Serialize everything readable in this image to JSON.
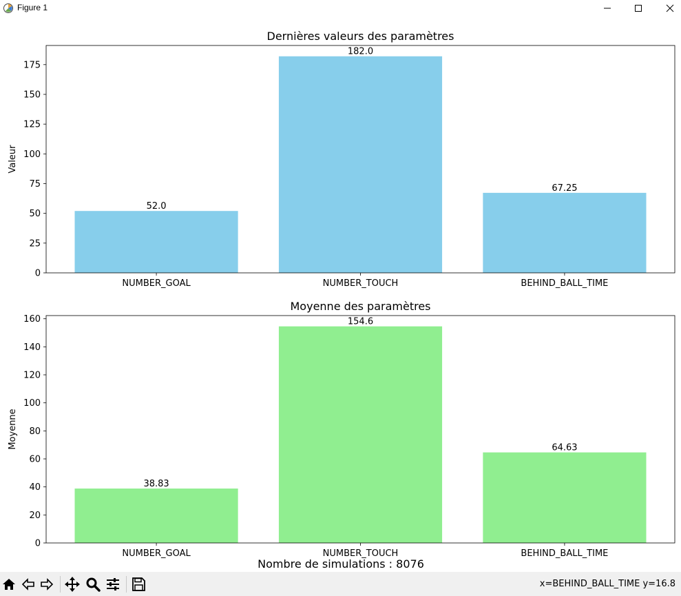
{
  "window": {
    "title": "Figure 1",
    "minimize_label": "—",
    "maximize_label": "☐",
    "close_label": "✕"
  },
  "figure": {
    "suptitle": "Nombre de simulations : 8076"
  },
  "chart_data": [
    {
      "type": "bar",
      "title": "Dernières valeurs des paramètres",
      "xlabel": "",
      "ylabel": "Valeur",
      "categories": [
        "NUMBER_GOAL",
        "NUMBER_TOUCH",
        "BEHIND_BALL_TIME"
      ],
      "values": [
        52.0,
        182.0,
        67.25
      ],
      "data_labels": [
        "52.0",
        "182.0",
        "67.25"
      ],
      "ylim": [
        0,
        191.1
      ],
      "yticks": [
        0,
        25,
        50,
        75,
        100,
        125,
        150,
        175
      ],
      "color": "#87ceeb",
      "grid": false
    },
    {
      "type": "bar",
      "title": "Moyenne des paramètres",
      "xlabel": "",
      "ylabel": "Moyenne",
      "categories": [
        "NUMBER_GOAL",
        "NUMBER_TOUCH",
        "BEHIND_BALL_TIME"
      ],
      "values": [
        38.83,
        154.6,
        64.63
      ],
      "data_labels": [
        "38.83",
        "154.6",
        "64.63"
      ],
      "ylim": [
        0,
        162.3
      ],
      "yticks": [
        0,
        20,
        40,
        60,
        80,
        100,
        120,
        140,
        160
      ],
      "color": "#90ee90",
      "grid": false
    }
  ],
  "toolbar": {
    "icons": [
      "home-icon",
      "back-icon",
      "forward-icon",
      "pan-icon",
      "zoom-icon",
      "configure-subplots-icon",
      "save-icon"
    ],
    "coords": "x=BEHIND_BALL_TIME y=16.8"
  }
}
